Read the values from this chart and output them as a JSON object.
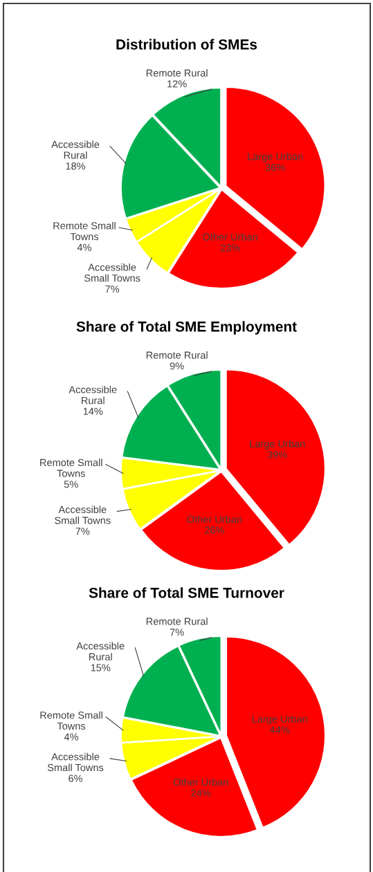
{
  "chart_data": [
    {
      "type": "pie",
      "title": "Distribution of SMEs",
      "categories": [
        "Large Urban",
        "Other Urban",
        "Accessible Small Towns",
        "Remote Small Towns",
        "Accessible Rural",
        "Remote Rural"
      ],
      "values": [
        36,
        23,
        7,
        4,
        18,
        12
      ],
      "value_labels": [
        "36%",
        "23%",
        "7%",
        "4%",
        "18%",
        "12%"
      ],
      "colors": [
        "#ff0000",
        "#ff0000",
        "#ffff00",
        "#ffff00",
        "#00b050",
        "#00b050"
      ],
      "data_labels": true
    },
    {
      "type": "pie",
      "title": "Share of Total SME Employment",
      "categories": [
        "Large Urban",
        "Other Urban",
        "Accessible Small Towns",
        "Remote Small Towns",
        "Accessible Rural",
        "Remote Rural"
      ],
      "values": [
        39,
        26,
        7,
        5,
        14,
        9
      ],
      "value_labels": [
        "39%",
        "26%",
        "7%",
        "5%",
        "14%",
        "9%"
      ],
      "colors": [
        "#ff0000",
        "#ff0000",
        "#ffff00",
        "#ffff00",
        "#00b050",
        "#00b050"
      ],
      "data_labels": true
    },
    {
      "type": "pie",
      "title": "Share of Total SME Turnover",
      "categories": [
        "Large Urban",
        "Other Urban",
        "Accessible Small Towns",
        "Remote Small Towns",
        "Accessible Rural",
        "Remote Rural"
      ],
      "values": [
        44,
        24,
        6,
        4,
        15,
        7
      ],
      "value_labels": [
        "44%",
        "24%",
        "6%",
        "4%",
        "15%",
        "7%"
      ],
      "colors": [
        "#ff0000",
        "#ff0000",
        "#ffff00",
        "#ffff00",
        "#00b050",
        "#00b050"
      ],
      "data_labels": true
    }
  ]
}
